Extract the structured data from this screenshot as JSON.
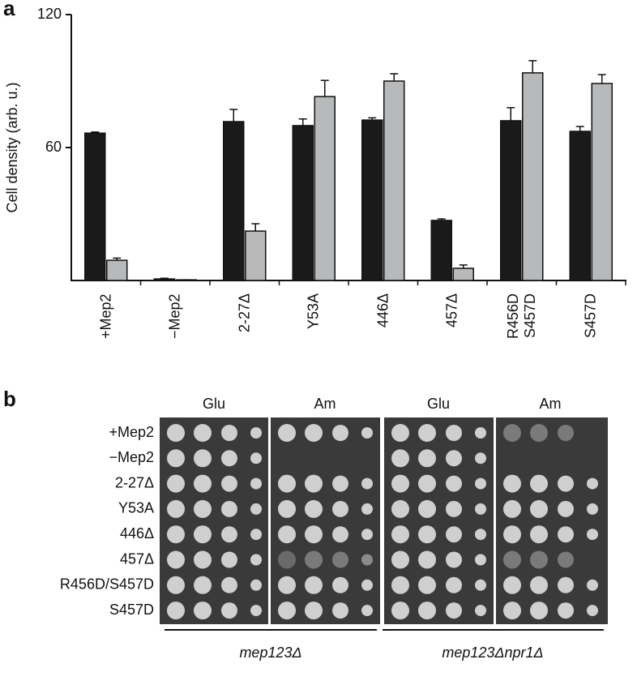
{
  "panel_a": {
    "label": "a"
  },
  "chart_data": {
    "type": "bar",
    "ylabel": "Cell density (arb. u.)",
    "categories": [
      "+Mep2",
      "−Mep2",
      "2-27Δ",
      "Y53A",
      "446Δ",
      "457Δ",
      "R456D\nS457D",
      "S457D"
    ],
    "series": [
      {
        "color": "#1a1a1a",
        "values": [
          66.5,
          0.7,
          71.7,
          69.9,
          72.4,
          27.1,
          72.1,
          67.3
        ],
        "errors": [
          0.5,
          0.3,
          5.5,
          3,
          1,
          0.7,
          5.9,
          2.2
        ]
      },
      {
        "color": "#b8b9bb",
        "values": [
          9.1,
          0.3,
          22.3,
          83,
          90,
          5.5,
          93.7,
          88.9
        ],
        "errors": [
          1,
          0,
          3.3,
          7.3,
          3.3,
          1.5,
          5.5,
          4
        ]
      }
    ],
    "ylim": [
      0,
      120
    ],
    "yticks": [
      60,
      120
    ]
  },
  "panel_b": {
    "label": "b",
    "columns": [
      "Glu",
      "Am",
      "Glu",
      "Am"
    ],
    "rows": [
      "+Mep2",
      "−Mep2",
      "2-27Δ",
      "Y53A",
      "446Δ",
      "457Δ",
      "R456D/S457D",
      "S457D"
    ],
    "strains": [
      "mep123Δ",
      "mep123Δnpr1Δ"
    ]
  }
}
